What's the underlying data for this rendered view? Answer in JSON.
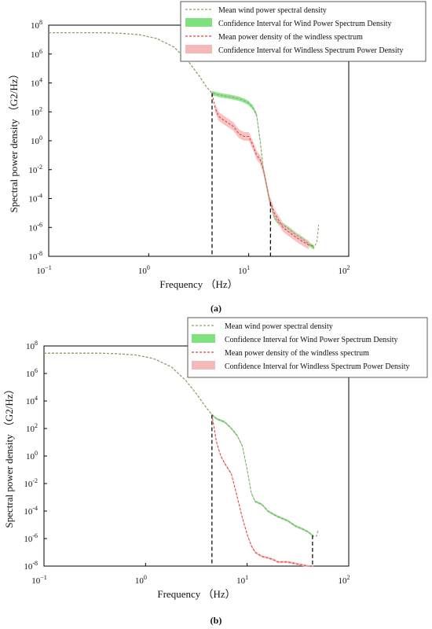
{
  "chart_data": [
    {
      "type": "line",
      "panel_label": "(a)",
      "xlabel": "Frequency （Hz）",
      "ylabel": "Spectral power density （G2/Hz）",
      "xscale": "log",
      "yscale": "log",
      "xlim": [
        0.1,
        100
      ],
      "ylim": [
        1e-08,
        100000000.0
      ],
      "x_ticks": [
        {
          "base": "10",
          "exp": "−1"
        },
        {
          "base": "10",
          "exp": "0"
        },
        {
          "base": "10",
          "exp": "1"
        },
        {
          "base": "10",
          "exp": "2"
        }
      ],
      "y_ticks": [
        {
          "base": "10",
          "exp": "8"
        },
        {
          "base": "10",
          "exp": "6"
        },
        {
          "base": "10",
          "exp": "4"
        },
        {
          "base": "10",
          "exp": "2"
        },
        {
          "base": "10",
          "exp": "0"
        },
        {
          "base": "10",
          "exp": "-2"
        },
        {
          "base": "10",
          "exp": "-4"
        },
        {
          "base": "10",
          "exp": "-6"
        },
        {
          "base": "10",
          "exp": "-8"
        }
      ],
      "legend": {
        "placement": "top-right",
        "entries": [
          "Mean wind power spectral density",
          "Confidence Interval for Wind Power Spectrum Density",
          "Mean power density of the windless spectrum",
          "Confidence Interval for Windless Spectrum Power Density"
        ]
      },
      "colors": {
        "wind_line": "#8aa36e",
        "wind_band": "#7fe27f",
        "windless_line": "#e04545",
        "windless_band": "#f6b9b9",
        "marker": "#111111"
      },
      "series": [
        {
          "name": "Mean wind power spectral density",
          "x": [
            0.1,
            0.2,
            0.35,
            0.5,
            0.8,
            1.2,
            1.8,
            2.5,
            3.2,
            3.8,
            4.3,
            5,
            6,
            7,
            8,
            9,
            10,
            11,
            12,
            13,
            14,
            15,
            16,
            18,
            20,
            22,
            25,
            30,
            35,
            40,
            45,
            48,
            50
          ],
          "y": [
            30000000.0,
            30000000.0,
            30000000.0,
            28000000.0,
            22000000.0,
            12000000.0,
            3000000.0,
            300000.0,
            30000.0,
            5000.0,
            2000.0,
            1500.0,
            1200.0,
            1000.0,
            800.0,
            600.0,
            400.0,
            200.0,
            60.0,
            1.0,
            0.01,
            0.001,
            0.0001,
            5e-06,
            2e-06,
            1.5e-06,
            8e-07,
            3e-07,
            1.5e-07,
            7e-08,
            4e-08,
            1e-07,
            1.5e-06
          ]
        },
        {
          "name": "Mean power density of the windless spectrum",
          "x": [
            0.1,
            0.2,
            0.35,
            0.5,
            0.8,
            1.2,
            1.8,
            2.5,
            3.2,
            3.8,
            4.3,
            4.6,
            5,
            5.5,
            6,
            7,
            8,
            9,
            10,
            11,
            12,
            13,
            14,
            15,
            16,
            18,
            20,
            22,
            25,
            30,
            35,
            40,
            45
          ],
          "y": [
            30000000.0,
            30000000.0,
            30000000.0,
            28000000.0,
            22000000.0,
            12000000.0,
            3000000.0,
            300000.0,
            30000.0,
            5000.0,
            2000.0,
            200.0,
            50.0,
            30.0,
            20.0,
            10.0,
            3,
            2,
            2,
            0.5,
            0.1,
            0.05,
            0.01,
            0.001,
            0.0001,
            1e-05,
            3e-06,
            1e-06,
            5e-07,
            2e-07,
            1e-07,
            6e-08,
            5e-08
          ]
        }
      ],
      "confidence_bands": [
        {
          "series": "Mean wind power spectral density",
          "from_x": 4.3,
          "to_x": 45,
          "half_width_decades": 0.15
        },
        {
          "series": "Mean power density of the windless spectrum",
          "from_x": 4.6,
          "to_x": 40,
          "half_width_decades": 0.3
        }
      ],
      "markers_x": [
        4.3,
        16.5
      ]
    },
    {
      "type": "line",
      "panel_label": "(b)",
      "xlabel": "Frequency （Hz）",
      "ylabel": "Spectral power density （G2/Hz）",
      "xscale": "log",
      "yscale": "log",
      "xlim": [
        0.1,
        100
      ],
      "ylim": [
        1e-08,
        100000000.0
      ],
      "x_ticks": [
        {
          "base": "10",
          "exp": "−1"
        },
        {
          "base": "10",
          "exp": "0"
        },
        {
          "base": "10",
          "exp": "1"
        },
        {
          "base": "10",
          "exp": "2"
        }
      ],
      "y_ticks": [
        {
          "base": "10",
          "exp": "8"
        },
        {
          "base": "10",
          "exp": "6"
        },
        {
          "base": "10",
          "exp": "4"
        },
        {
          "base": "10",
          "exp": "2"
        },
        {
          "base": "10",
          "exp": "0"
        },
        {
          "base": "10",
          "exp": "-2"
        },
        {
          "base": "10",
          "exp": "-4"
        },
        {
          "base": "10",
          "exp": "-6"
        },
        {
          "base": "10",
          "exp": "-8"
        }
      ],
      "legend": {
        "placement": "top-right",
        "entries": [
          "Mean wind power spectral density",
          "Confidence Interval for Wind Power Spectrum Density",
          "Mean power density of the windless spectrum",
          "Confidence Interval for Windless Spectrum Power Density"
        ]
      },
      "colors": {
        "wind_line": "#8aa36e",
        "wind_band": "#7fe27f",
        "windless_line": "#e04545",
        "windless_band": "#f6b9b9",
        "marker": "#111111"
      },
      "series": [
        {
          "name": "Mean wind power spectral density",
          "x": [
            0.1,
            0.2,
            0.35,
            0.5,
            0.8,
            1.2,
            1.8,
            2.5,
            3.2,
            3.8,
            4.5,
            5,
            6,
            7,
            8,
            9,
            10,
            11,
            12,
            14,
            16,
            18,
            20,
            25,
            30,
            35,
            40,
            45,
            48,
            50
          ],
          "y": [
            30000000.0,
            30000000.0,
            30000000.0,
            28000000.0,
            22000000.0,
            12000000.0,
            3000000.0,
            300000.0,
            30000.0,
            5000.0,
            1000.0,
            500.0,
            300.0,
            100.0,
            30.0,
            5,
            0.1,
            0.002,
            0.0005,
            0.0003,
            0.0001,
            6e-05,
            4e-05,
            2e-05,
            8e-06,
            5e-06,
            3e-06,
            1.5e-06,
            1.5e-06,
            4e-06
          ]
        },
        {
          "name": "Mean power density of the windless spectrum",
          "x": [
            0.1,
            0.2,
            0.35,
            0.5,
            0.8,
            1.2,
            1.8,
            2.5,
            3.2,
            3.8,
            4.5,
            5,
            5.5,
            6,
            7,
            8,
            9,
            10,
            11,
            12,
            14,
            16,
            18,
            20,
            25,
            30,
            35,
            40,
            45
          ],
          "y": [
            30000000.0,
            30000000.0,
            30000000.0,
            28000000.0,
            22000000.0,
            12000000.0,
            3000000.0,
            300000.0,
            30000.0,
            5000.0,
            1000.0,
            10.0,
            1,
            0.3,
            0.05,
            0.001,
            3e-05,
            2e-06,
            3e-07,
            1e-07,
            5e-08,
            4e-08,
            3e-08,
            2e-08,
            2e-08,
            1.5e-08,
            1.2e-08,
            1e-08,
            1e-08
          ]
        }
      ],
      "confidence_bands": [
        {
          "series": "Mean wind power spectral density",
          "from_x": 4.5,
          "to_x": 45,
          "half_width_decades": 0.08
        },
        {
          "series": "Mean power density of the windless spectrum",
          "from_x": 4.5,
          "to_x": 40,
          "half_width_decades": 0.08
        }
      ],
      "markers_x": [
        4.5,
        44
      ]
    }
  ]
}
